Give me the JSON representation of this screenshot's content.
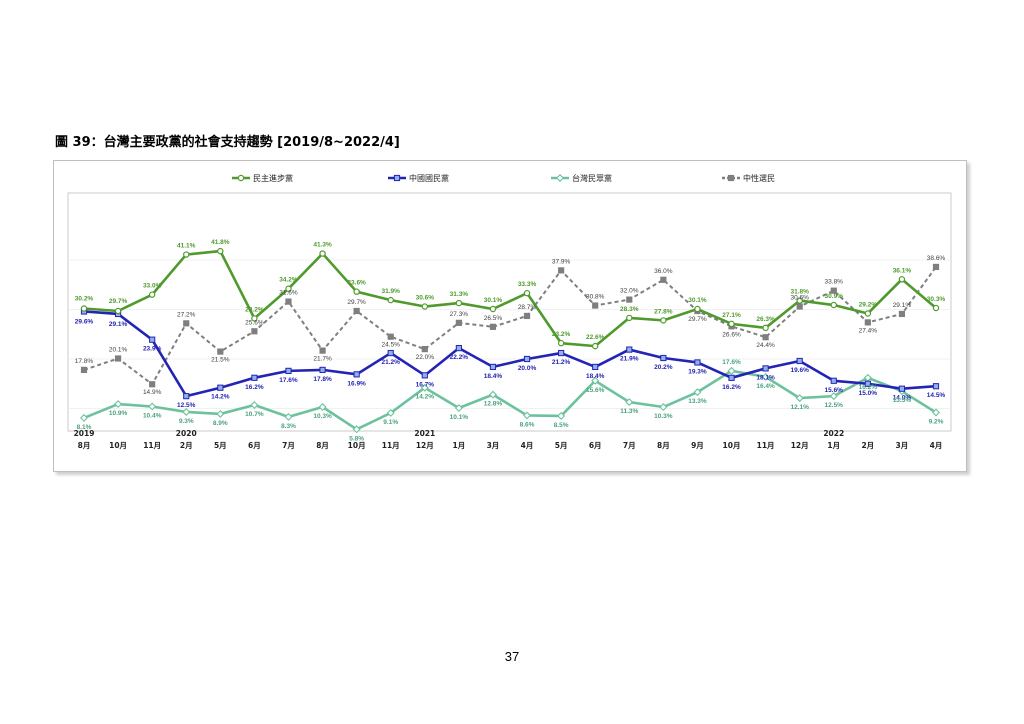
{
  "caption": "圖 39：台灣主要政黨的社會支持趨勢  [2019/8~2022/4]",
  "page_number": "37",
  "chart_data": {
    "type": "line",
    "title": "",
    "xlabel": "",
    "ylabel": "",
    "ylim": [
      0,
      50
    ],
    "grid": true,
    "legend_position": "top",
    "years": [
      "2019",
      "2020",
      "2021",
      "2022"
    ],
    "year_index": [
      0,
      3,
      10,
      22
    ],
    "categories": [
      "8月",
      "10月",
      "11月",
      "2月",
      "5月",
      "6月",
      "7月",
      "8月",
      "10月",
      "11月",
      "12月",
      "1月",
      "3月",
      "4月",
      "5月",
      "6月",
      "7月",
      "8月",
      "9月",
      "10月",
      "11月",
      "12月",
      "1月",
      "2月",
      "3月",
      "4月"
    ],
    "series": [
      {
        "name": "民主進步黨",
        "color": "#4f9a2c",
        "marker": "circle",
        "dashed": false,
        "values": [
          30.2,
          29.7,
          33.0,
          41.1,
          41.8,
          28.2,
          34.2,
          41.3,
          33.6,
          31.9,
          30.6,
          31.3,
          30.1,
          33.3,
          23.2,
          22.6,
          28.3,
          27.8,
          30.1,
          27.1,
          26.3,
          31.8,
          30.9,
          29.2,
          36.1,
          30.3
        ],
        "labels": [
          "30.2%",
          "29.7%",
          "33.0%",
          "41.1%",
          "41.8%",
          "28.2%",
          "34.2%",
          "41.3%",
          "33.6%",
          "31.9%",
          "30.6%",
          "31.3%",
          "30.1%",
          "33.3%",
          "23.2%",
          "22.6%",
          "28.3%",
          "27.8%",
          "30.1%",
          "27.1%",
          "26.3%",
          "31.8%",
          "30.9%",
          "29.2%",
          "36.1%",
          "30.3%"
        ]
      },
      {
        "name": "中國國民黨",
        "color": "#2323b5",
        "marker": "square",
        "dashed": false,
        "values": [
          29.6,
          29.1,
          23.9,
          12.5,
          14.2,
          16.2,
          17.6,
          17.8,
          16.9,
          21.2,
          16.7,
          22.2,
          18.4,
          20.0,
          21.2,
          18.4,
          21.9,
          20.2,
          19.3,
          16.2,
          18.1,
          19.6,
          15.6,
          15.0,
          14.0,
          14.5
        ],
        "labels": [
          "29.6%",
          "29.1%",
          "23.9%",
          "12.5%",
          "14.2%",
          "16.2%",
          "17.6%",
          "17.8%",
          "16.9%",
          "21.2%",
          "16.7%",
          "22.2%",
          "18.4%",
          "20.0%",
          "21.2%",
          "18.4%",
          "21.9%",
          "20.2%",
          "19.3%",
          "16.2%",
          "18.1%",
          "19.6%",
          "15.6%",
          "15.0%",
          "14.0%",
          "14.5%"
        ]
      },
      {
        "name": "台灣民眾黨",
        "color": "#6cc29c",
        "marker": "diamond",
        "dashed": false,
        "values": [
          8.1,
          10.9,
          10.4,
          9.3,
          8.9,
          10.7,
          8.3,
          10.3,
          5.8,
          9.1,
          14.2,
          10.1,
          12.8,
          8.6,
          8.5,
          15.6,
          11.3,
          10.3,
          13.3,
          17.6,
          16.4,
          12.1,
          12.5,
          16.2,
          13.5,
          9.2
        ],
        "labels": [
          "8.1%",
          "10.9%",
          "10.4%",
          "9.3%",
          "8.9%",
          "10.7%",
          "8.3%",
          "10.3%",
          "5.8%",
          "9.1%",
          "14.2%",
          "10.1%",
          "12.8%",
          "8.6%",
          "8.5%",
          "15.6%",
          "11.3%",
          "10.3%",
          "13.3%",
          "17.6%",
          "16.4%",
          "12.1%",
          "12.5%",
          "16.2%",
          "13.5%",
          "9.2%"
        ]
      },
      {
        "name": "中性選民",
        "color": "#7f7f7f",
        "marker": "square",
        "dashed": true,
        "values": [
          17.8,
          20.1,
          14.9,
          27.2,
          21.5,
          25.6,
          31.6,
          21.7,
          29.7,
          24.5,
          22.0,
          27.3,
          26.5,
          28.7,
          37.9,
          30.8,
          32.0,
          36.0,
          29.7,
          26.6,
          24.4,
          30.6,
          33.8,
          27.4,
          29.1,
          38.6
        ],
        "labels": [
          "17.8%",
          "20.1%",
          "14.9%",
          "27.2%",
          "21.5%",
          "25.6%",
          "31.6%",
          "21.7%",
          "29.7%",
          "24.5%",
          "22.0%",
          "27.3%",
          "26.5%",
          "28.7%",
          "37.9%",
          "30.8%",
          "32.0%",
          "36.0%",
          "29.7%",
          "26.6%",
          "24.4%",
          "30.6%",
          "33.8%",
          "27.4%",
          "29.1%",
          "38.6%"
        ]
      }
    ]
  }
}
